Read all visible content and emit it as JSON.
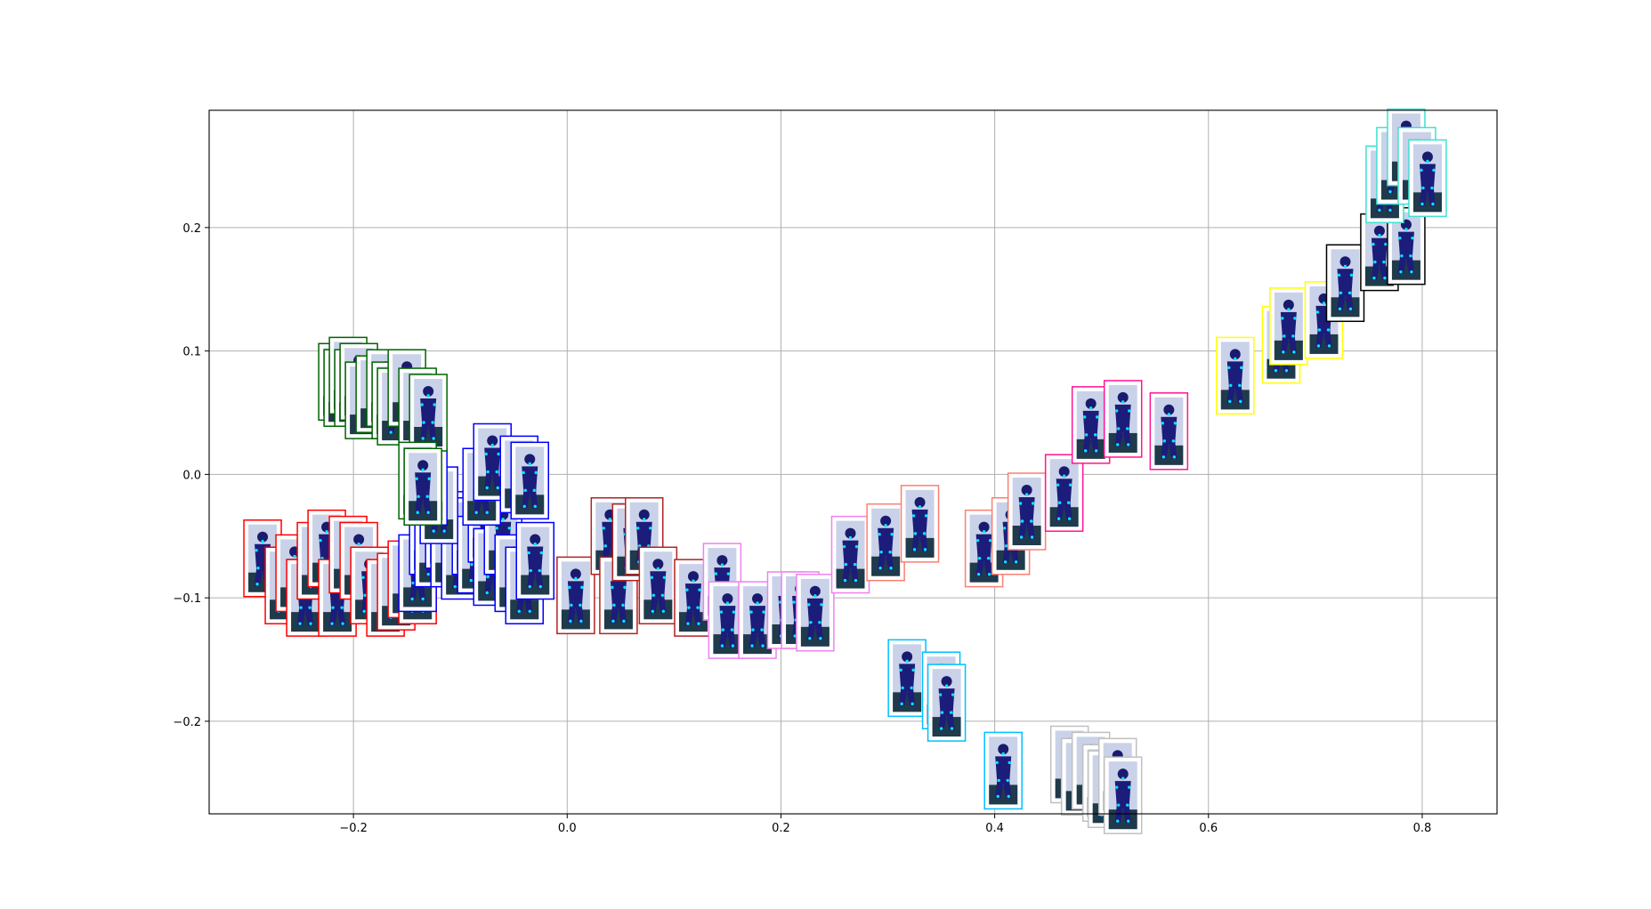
{
  "chart_data": {
    "type": "scatter",
    "title": "",
    "xlabel": "",
    "ylabel": "",
    "xlim": [
      -0.335,
      0.87
    ],
    "ylim": [
      -0.275,
      0.295
    ],
    "grid": true,
    "x_ticks": [
      {
        "value": -0.2,
        "label": "−0.2"
      },
      {
        "value": 0.0,
        "label": "0.0"
      },
      {
        "value": 0.2,
        "label": "0.2"
      },
      {
        "value": 0.4,
        "label": "0.4"
      },
      {
        "value": 0.6,
        "label": "0.6"
      },
      {
        "value": 0.8,
        "label": "0.8"
      }
    ],
    "y_ticks": [
      {
        "value": -0.2,
        "label": "−0.2"
      },
      {
        "value": -0.1,
        "label": "−0.1"
      },
      {
        "value": 0.0,
        "label": "0.0"
      },
      {
        "value": 0.1,
        "label": "0.1"
      },
      {
        "value": 0.2,
        "label": "0.2"
      }
    ],
    "marker": "image-thumbnail",
    "series": [
      {
        "color": "#ff0000",
        "points": [
          [
            -0.285,
            -0.068
          ],
          [
            -0.265,
            -0.09
          ],
          [
            -0.255,
            -0.08
          ],
          [
            -0.245,
            -0.1
          ],
          [
            -0.235,
            -0.07
          ],
          [
            -0.225,
            -0.06
          ],
          [
            -0.215,
            -0.1
          ],
          [
            -0.205,
            -0.065
          ],
          [
            -0.195,
            -0.07
          ],
          [
            -0.185,
            -0.09
          ],
          [
            -0.17,
            -0.1
          ],
          [
            -0.16,
            -0.095
          ],
          [
            -0.15,
            -0.085
          ],
          [
            -0.14,
            -0.09
          ]
        ]
      },
      {
        "color": "#0000ff",
        "points": [
          [
            -0.14,
            -0.08
          ],
          [
            -0.13,
            -0.05
          ],
          [
            -0.125,
            -0.06
          ],
          [
            -0.115,
            -0.045
          ],
          [
            -0.11,
            -0.06
          ],
          [
            -0.1,
            -0.07
          ],
          [
            -0.09,
            -0.05
          ],
          [
            -0.085,
            -0.065
          ],
          [
            -0.075,
            -0.04
          ],
          [
            -0.07,
            -0.075
          ],
          [
            -0.06,
            -0.05
          ],
          [
            -0.05,
            -0.08
          ],
          [
            -0.04,
            -0.09
          ],
          [
            -0.03,
            -0.07
          ],
          [
            -0.12,
            -0.025
          ],
          [
            -0.08,
            -0.01
          ],
          [
            -0.07,
            0.01
          ],
          [
            -0.045,
            0.0
          ],
          [
            -0.035,
            -0.005
          ],
          [
            -0.13,
            -0.01
          ]
        ]
      },
      {
        "color": "#006400",
        "points": [
          [
            -0.215,
            0.075
          ],
          [
            -0.21,
            0.07
          ],
          [
            -0.205,
            0.08
          ],
          [
            -0.2,
            0.07
          ],
          [
            -0.195,
            0.075
          ],
          [
            -0.19,
            0.06
          ],
          [
            -0.18,
            0.065
          ],
          [
            -0.17,
            0.07
          ],
          [
            -0.165,
            0.06
          ],
          [
            -0.16,
            0.055
          ],
          [
            -0.15,
            0.07
          ],
          [
            -0.14,
            0.055
          ],
          [
            -0.13,
            0.05
          ],
          [
            -0.14,
            -0.005
          ],
          [
            -0.135,
            -0.01
          ]
        ]
      },
      {
        "color": "#b22222",
        "points": [
          [
            0.008,
            -0.098
          ],
          [
            0.04,
            -0.05
          ],
          [
            0.048,
            -0.098
          ],
          [
            0.06,
            -0.055
          ],
          [
            0.072,
            -0.05
          ],
          [
            0.085,
            -0.09
          ],
          [
            0.118,
            -0.1
          ]
        ]
      },
      {
        "color": "#ee82ee",
        "points": [
          [
            0.145,
            -0.087
          ],
          [
            0.15,
            -0.118
          ],
          [
            0.178,
            -0.118
          ],
          [
            0.205,
            -0.11
          ],
          [
            0.218,
            -0.11
          ],
          [
            0.232,
            -0.112
          ],
          [
            0.265,
            -0.065
          ]
        ]
      },
      {
        "color": "#fa8072",
        "points": [
          [
            0.298,
            -0.055
          ],
          [
            0.33,
            -0.04
          ],
          [
            0.39,
            -0.06
          ],
          [
            0.415,
            -0.05
          ],
          [
            0.43,
            -0.03
          ]
        ]
      },
      {
        "color": "#ff1493",
        "points": [
          [
            0.465,
            -0.015
          ],
          [
            0.49,
            0.04
          ],
          [
            0.52,
            0.045
          ],
          [
            0.563,
            0.035
          ]
        ]
      },
      {
        "color": "#ffff00",
        "points": [
          [
            0.625,
            0.08
          ],
          [
            0.668,
            0.105
          ],
          [
            0.675,
            0.12
          ],
          [
            0.708,
            0.125
          ]
        ]
      },
      {
        "color": "#000000",
        "points": [
          [
            0.728,
            0.155
          ],
          [
            0.76,
            0.18
          ],
          [
            0.785,
            0.185
          ]
        ]
      },
      {
        "color": "#40e0d0",
        "points": [
          [
            0.765,
            0.235
          ],
          [
            0.775,
            0.25
          ],
          [
            0.785,
            0.265
          ],
          [
            0.795,
            0.25
          ],
          [
            0.805,
            0.24
          ]
        ]
      },
      {
        "color": "#00bfff",
        "points": [
          [
            0.318,
            -0.165
          ],
          [
            0.35,
            -0.175
          ],
          [
            0.355,
            -0.185
          ],
          [
            0.408,
            -0.24
          ]
        ]
      },
      {
        "color": "#c0c0c0",
        "points": [
          [
            0.47,
            -0.235
          ],
          [
            0.48,
            -0.245
          ],
          [
            0.49,
            -0.24
          ],
          [
            0.5,
            -0.25
          ],
          [
            0.505,
            -0.255
          ],
          [
            0.515,
            -0.245
          ],
          [
            0.52,
            -0.26
          ]
        ]
      }
    ]
  }
}
